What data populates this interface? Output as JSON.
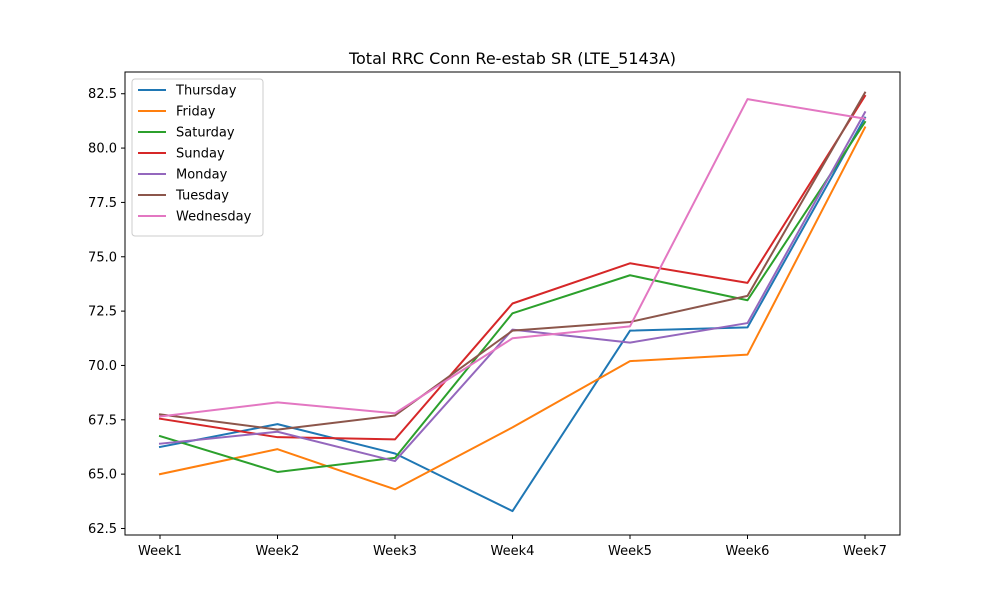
{
  "chart_data": {
    "type": "line",
    "title": "Total RRC Conn Re-estab SR (LTE_5143A)",
    "xlabel": "",
    "ylabel": "",
    "categories": [
      "Week1",
      "Week2",
      "Week3",
      "Week4",
      "Week5",
      "Week6",
      "Week7"
    ],
    "ylim": [
      62.2,
      83.5
    ],
    "yticks": [
      "62.5",
      "65.0",
      "67.5",
      "70.0",
      "72.5",
      "75.0",
      "77.5",
      "80.0",
      "82.5"
    ],
    "grid": false,
    "legend_position": "top-left",
    "series": [
      {
        "name": "Thursday",
        "color": "#1f77b4",
        "values": [
          66.25,
          67.3,
          65.95,
          63.3,
          71.6,
          71.75,
          81.4
        ]
      },
      {
        "name": "Friday",
        "color": "#ff7f0e",
        "values": [
          65.0,
          66.15,
          64.3,
          67.15,
          70.2,
          70.5,
          80.95
        ]
      },
      {
        "name": "Saturday",
        "color": "#2ca02c",
        "values": [
          66.75,
          65.1,
          65.75,
          72.4,
          74.15,
          73.0,
          81.2
        ]
      },
      {
        "name": "Sunday",
        "color": "#d62728",
        "values": [
          67.55,
          66.7,
          66.6,
          72.85,
          74.7,
          73.8,
          82.4
        ]
      },
      {
        "name": "Monday",
        "color": "#9467bd",
        "values": [
          66.4,
          66.95,
          65.6,
          71.65,
          71.05,
          71.95,
          81.65
        ]
      },
      {
        "name": "Tuesday",
        "color": "#8c564b",
        "values": [
          67.75,
          67.05,
          67.7,
          71.6,
          72.0,
          73.2,
          82.55
        ]
      },
      {
        "name": "Wednesday",
        "color": "#e377c2",
        "values": [
          67.65,
          68.3,
          67.8,
          71.25,
          71.8,
          82.25,
          81.35
        ]
      }
    ]
  }
}
